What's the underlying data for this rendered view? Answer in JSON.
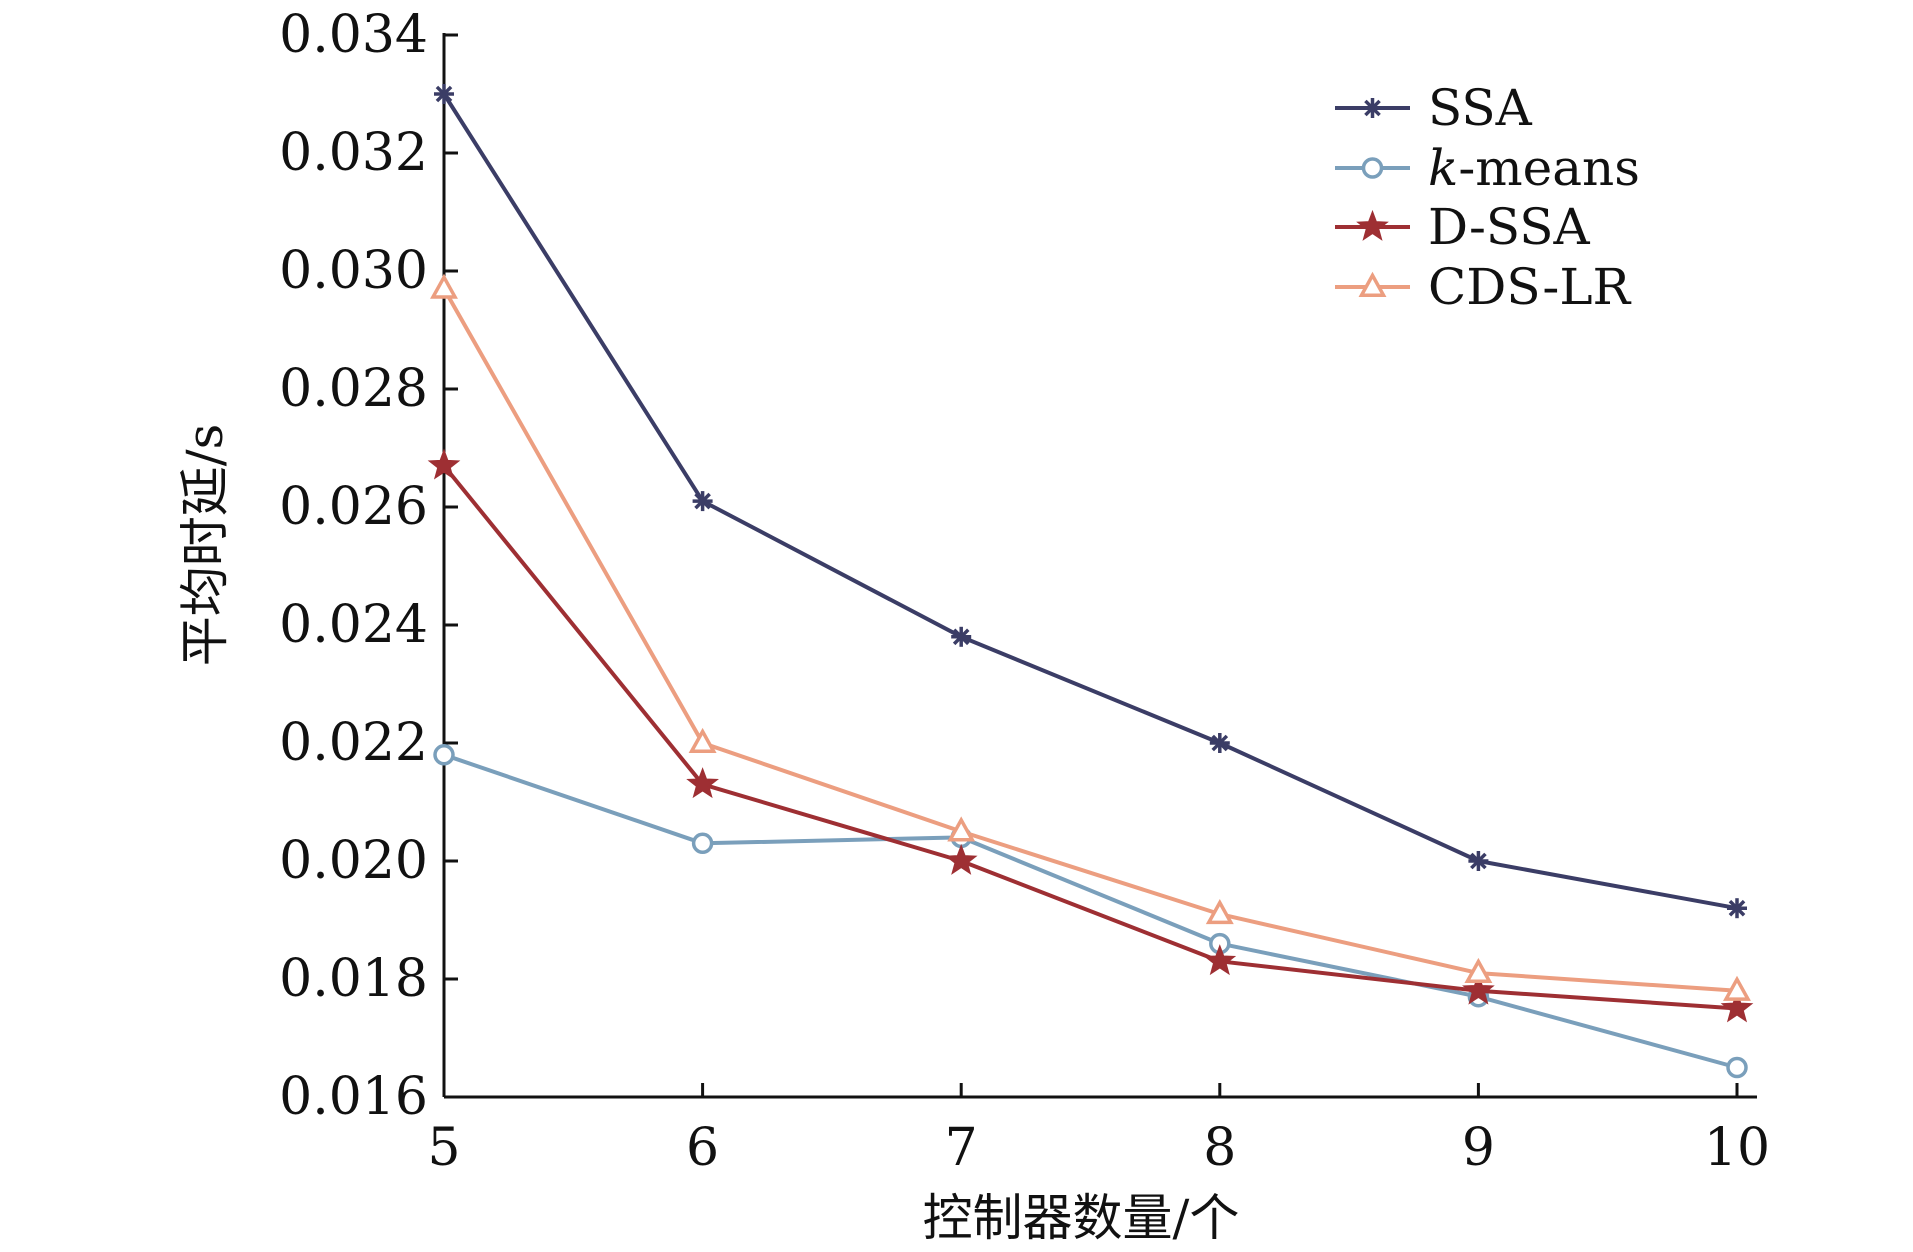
{
  "chart_data": {
    "type": "line",
    "title": "",
    "xlabel": "控制器数量/个",
    "ylabel": "平均时延/s",
    "x": [
      5,
      6,
      7,
      8,
      9,
      10
    ],
    "xticks": [
      "5",
      "6",
      "7",
      "8",
      "9",
      "10"
    ],
    "xlim": [
      5,
      10
    ],
    "ylim": [
      0.016,
      0.034
    ],
    "yticks": [
      "0.016",
      "0.018",
      "0.020",
      "0.022",
      "0.024",
      "0.026",
      "0.028",
      "0.030",
      "0.032",
      "0.034"
    ],
    "grid": false,
    "legend_position": "top-right",
    "series": [
      {
        "name": "SSA",
        "name_italic_prefix": "",
        "name_rest": "SSA",
        "color": "#3b3d66",
        "marker": "asterisk",
        "values": [
          0.033,
          0.0261,
          0.0238,
          0.022,
          0.02,
          0.0192
        ]
      },
      {
        "name": "k-means",
        "name_italic_prefix": "k",
        "name_rest": "-means",
        "color": "#7a9fbb",
        "marker": "circle",
        "values": [
          0.0218,
          0.0203,
          0.0204,
          0.0186,
          0.0177,
          0.0165
        ]
      },
      {
        "name": "D-SSA",
        "name_italic_prefix": "",
        "name_rest": "D-SSA",
        "color": "#9e2f33",
        "marker": "star",
        "values": [
          0.0267,
          0.0213,
          0.02,
          0.0183,
          0.0178,
          0.0175
        ]
      },
      {
        "name": "CDS-LR",
        "name_italic_prefix": "",
        "name_rest": "CDS-LR",
        "color": "#ec9e80",
        "marker": "triangle",
        "values": [
          0.0297,
          0.022,
          0.0205,
          0.0191,
          0.0181,
          0.0178
        ]
      }
    ]
  }
}
